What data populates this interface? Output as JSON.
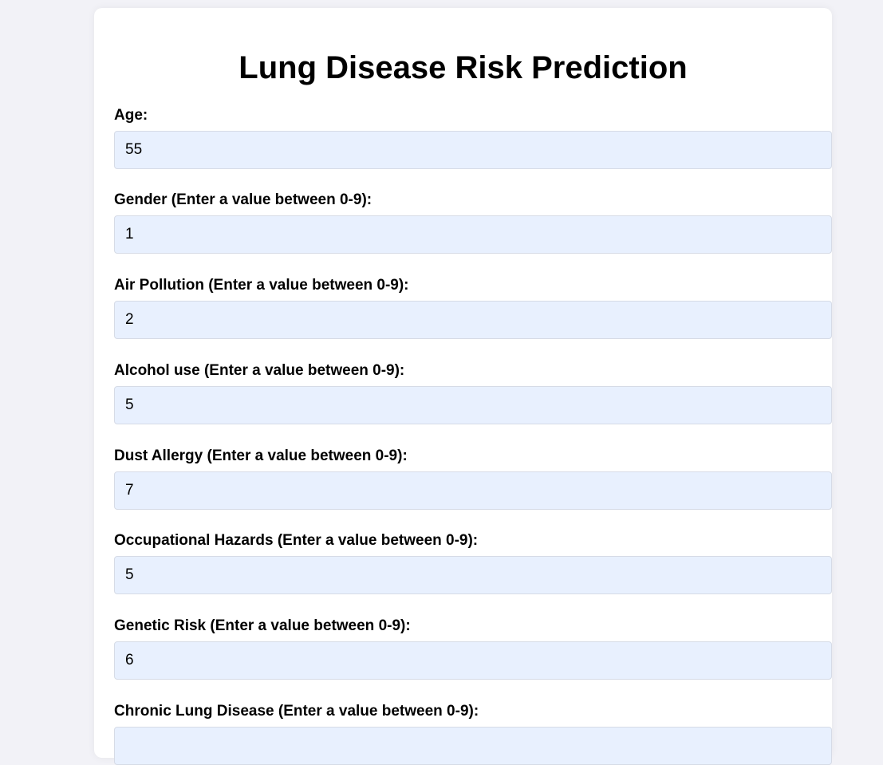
{
  "form": {
    "title": "Lung Disease Risk Prediction",
    "fields": [
      {
        "label": "Age:",
        "value": "55"
      },
      {
        "label": "Gender (Enter a value between 0-9):",
        "value": "1"
      },
      {
        "label": "Air Pollution (Enter a value between 0-9):",
        "value": "2"
      },
      {
        "label": "Alcohol use (Enter a value between 0-9):",
        "value": "5"
      },
      {
        "label": "Dust Allergy (Enter a value between 0-9):",
        "value": "7"
      },
      {
        "label": "Occupational Hazards (Enter a value between 0-9):",
        "value": "5"
      },
      {
        "label": "Genetic Risk (Enter a value between 0-9):",
        "value": "6"
      },
      {
        "label": "Chronic Lung Disease (Enter a value between 0-9):",
        "value": ""
      }
    ]
  },
  "colors": {
    "page_background": "#f2f2f7",
    "card_background": "#ffffff",
    "input_background": "#e8f0fe"
  }
}
